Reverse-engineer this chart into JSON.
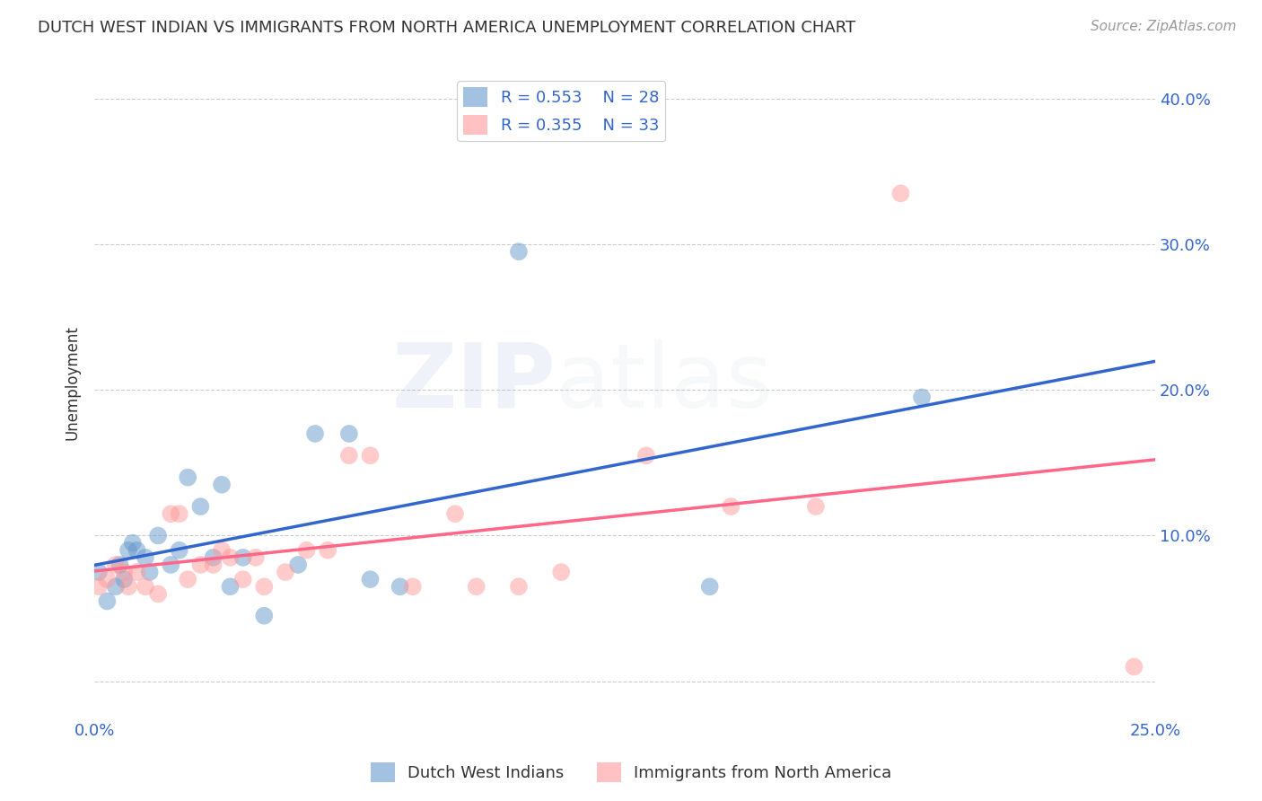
{
  "title": "DUTCH WEST INDIAN VS IMMIGRANTS FROM NORTH AMERICA UNEMPLOYMENT CORRELATION CHART",
  "source": "Source: ZipAtlas.com",
  "ylabel": "Unemployment",
  "y_ticks": [
    0.0,
    0.1,
    0.2,
    0.3,
    0.4
  ],
  "y_tick_labels": [
    "",
    "10.0%",
    "20.0%",
    "30.0%",
    "40.0%"
  ],
  "x_ticks": [
    0.0,
    0.05,
    0.1,
    0.15,
    0.2,
    0.25
  ],
  "xlim": [
    0.0,
    0.25
  ],
  "ylim": [
    -0.01,
    0.42
  ],
  "blue_color": "#6699CC",
  "pink_color": "#FF9999",
  "blue_line_color": "#3366CC",
  "pink_line_color": "#FF6688",
  "legend_text_color": "#3366CC",
  "watermark_zip": "ZIP",
  "watermark_atlas": "atlas",
  "blue_x": [
    0.001,
    0.003,
    0.005,
    0.006,
    0.007,
    0.008,
    0.009,
    0.01,
    0.012,
    0.013,
    0.015,
    0.018,
    0.02,
    0.022,
    0.025,
    0.028,
    0.03,
    0.032,
    0.035,
    0.04,
    0.048,
    0.052,
    0.06,
    0.065,
    0.072,
    0.1,
    0.145,
    0.195
  ],
  "blue_y": [
    0.075,
    0.055,
    0.065,
    0.08,
    0.07,
    0.09,
    0.095,
    0.09,
    0.085,
    0.075,
    0.1,
    0.08,
    0.09,
    0.14,
    0.12,
    0.085,
    0.135,
    0.065,
    0.085,
    0.045,
    0.08,
    0.17,
    0.17,
    0.07,
    0.065,
    0.295,
    0.065,
    0.195
  ],
  "pink_x": [
    0.001,
    0.003,
    0.005,
    0.007,
    0.008,
    0.01,
    0.012,
    0.015,
    0.018,
    0.02,
    0.022,
    0.025,
    0.028,
    0.03,
    0.032,
    0.035,
    0.038,
    0.04,
    0.045,
    0.05,
    0.055,
    0.06,
    0.065,
    0.075,
    0.085,
    0.09,
    0.1,
    0.11,
    0.13,
    0.15,
    0.17,
    0.19,
    0.245
  ],
  "pink_y": [
    0.065,
    0.07,
    0.08,
    0.075,
    0.065,
    0.075,
    0.065,
    0.06,
    0.115,
    0.115,
    0.07,
    0.08,
    0.08,
    0.09,
    0.085,
    0.07,
    0.085,
    0.065,
    0.075,
    0.09,
    0.09,
    0.155,
    0.155,
    0.065,
    0.115,
    0.065,
    0.065,
    0.075,
    0.155,
    0.12,
    0.12,
    0.335,
    0.01
  ],
  "background_color": "#ffffff",
  "grid_color": "#cccccc",
  "title_color": "#333333",
  "axis_label_color": "#3366CC"
}
